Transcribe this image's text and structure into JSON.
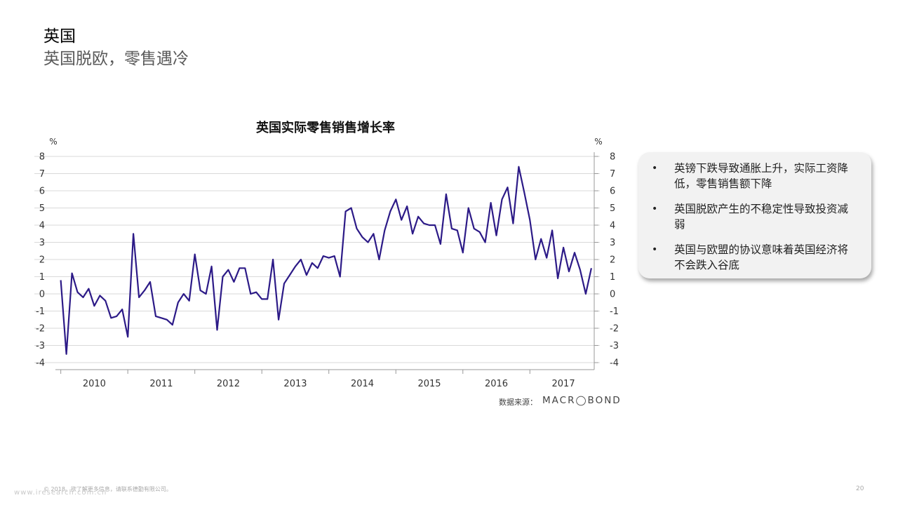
{
  "header": {
    "title": "英国",
    "subtitle": "英国脱欧，零售遇冷"
  },
  "bullets": [
    "英镑下跌导致通胀上升，实际工资降低，零售销售额下降",
    "英国脱欧产生的不稳定性导致投资减弱",
    "英国与欧盟的协议意味着英国经济将不会跌入谷底"
  ],
  "source": {
    "label": "数据来源：",
    "brand": "MACR◯BOND"
  },
  "footer": {
    "text": "© 2018。欲了解更多信息，请联系德勤有限公司。",
    "page": "20",
    "watermark": "www.iresearch.com.cn"
  },
  "colors": {
    "line": "#2c1a87",
    "grid": "#d9d9d9",
    "axis": "#999999"
  },
  "chart_data": {
    "type": "line",
    "title": "英国实际零售销售增长率",
    "ylabel_left": "%",
    "ylabel_right": "%",
    "ylim": [
      -4,
      8
    ],
    "yticks": [
      -4,
      -3,
      -2,
      -1,
      0,
      1,
      2,
      3,
      4,
      5,
      6,
      7,
      8
    ],
    "xlim": [
      2009.92,
      2017.96
    ],
    "xticks": [
      {
        "label": "2010",
        "at": 2010.5
      },
      {
        "label": "2011",
        "at": 2011.5
      },
      {
        "label": "2012",
        "at": 2012.5
      },
      {
        "label": "2013",
        "at": 2013.5
      },
      {
        "label": "2014",
        "at": 2014.5
      },
      {
        "label": "2015",
        "at": 2015.5
      },
      {
        "label": "2016",
        "at": 2016.5
      },
      {
        "label": "2017",
        "at": 2017.5
      }
    ],
    "grid": true,
    "start": "2010-01",
    "frequency": "monthly",
    "values": [
      0.8,
      -3.5,
      1.2,
      0.1,
      -0.2,
      0.3,
      -0.7,
      -0.1,
      -0.4,
      -1.4,
      -1.3,
      -0.9,
      -2.5,
      3.5,
      -0.2,
      0.2,
      0.7,
      -1.3,
      -1.4,
      -1.5,
      -1.8,
      -0.5,
      -0.0,
      -0.4,
      2.3,
      0.2,
      0.0,
      1.6,
      -2.1,
      1.0,
      1.4,
      0.7,
      1.5,
      1.5,
      0.0,
      0.1,
      -0.3,
      -0.3,
      2.0,
      -1.5,
      0.6,
      1.1,
      1.6,
      2.0,
      1.1,
      1.8,
      1.5,
      2.2,
      2.1,
      2.2,
      1.0,
      4.8,
      5.0,
      3.8,
      3.3,
      3.0,
      3.5,
      2.0,
      3.7,
      4.8,
      5.5,
      4.3,
      5.1,
      3.5,
      4.5,
      4.1,
      4.0,
      4.0,
      2.9,
      5.8,
      3.8,
      3.7,
      2.4,
      5.0,
      3.8,
      3.6,
      3.0,
      5.3,
      3.4,
      5.5,
      6.2,
      4.1,
      7.4,
      5.9,
      4.3,
      2.0,
      3.2,
      2.1,
      3.7,
      0.9,
      2.7,
      1.3,
      2.4,
      1.4,
      0.0,
      1.5
    ]
  }
}
